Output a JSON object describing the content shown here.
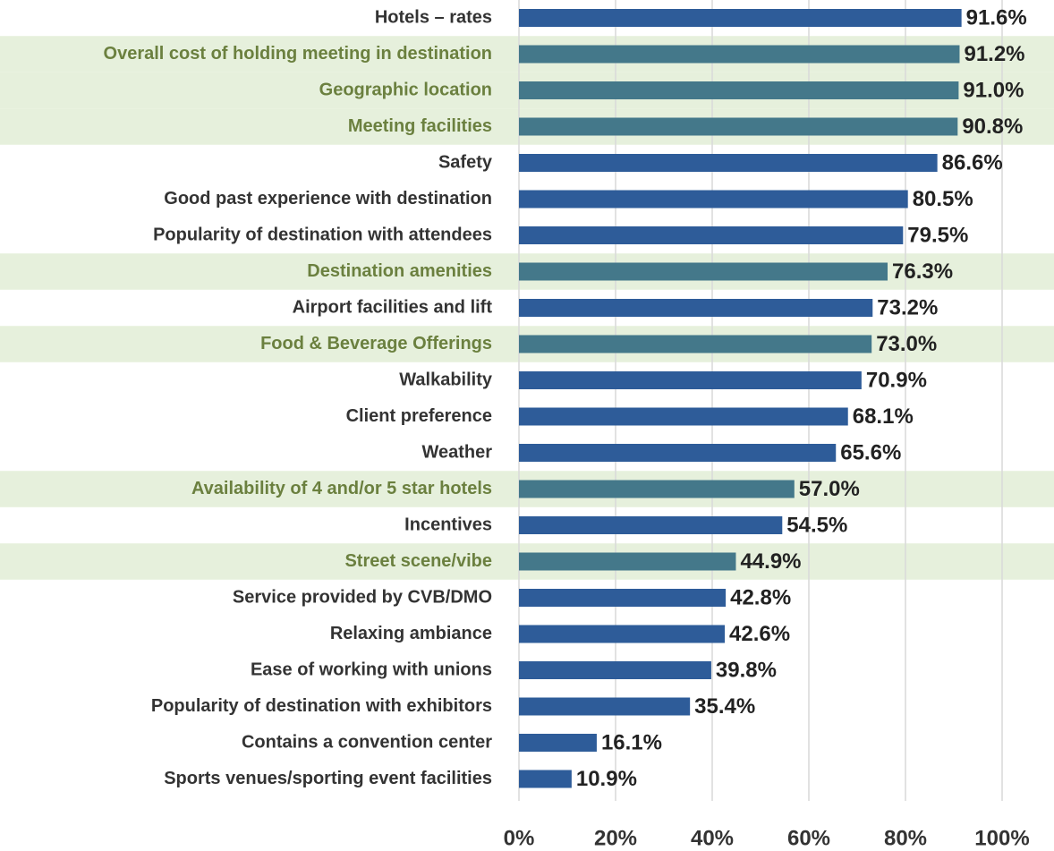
{
  "chart_data": {
    "type": "barh",
    "categories": [
      "Hotels – rates",
      "Overall cost of holding meeting in destination",
      "Geographic location",
      "Meeting facilities",
      "Safety",
      "Good past experience with destination",
      "Popularity of destination with attendees",
      "Destination amenities",
      "Airport facilities and lift",
      "Food & Beverage Offerings",
      "Walkability",
      "Client preference",
      "Weather",
      "Availability of 4 and/or 5 star hotels",
      "Incentives",
      "Street scene/vibe",
      "Service provided by CVB/DMO",
      "Relaxing ambiance",
      "Ease of working with unions",
      "Popularity of destination with exhibitors",
      "Contains a convention center",
      "Sports venues/sporting event facilities"
    ],
    "values": [
      91.6,
      91.2,
      91.0,
      90.8,
      86.6,
      80.5,
      79.5,
      76.3,
      73.2,
      73.0,
      70.9,
      68.1,
      65.6,
      57.0,
      54.5,
      44.9,
      42.8,
      42.6,
      39.8,
      35.4,
      16.1,
      10.9
    ],
    "value_labels": [
      "91.6%",
      "91.2%",
      "91.0%",
      "90.8%",
      "86.6%",
      "80.5%",
      "79.5%",
      "76.3%",
      "73.2%",
      "73.0%",
      "70.9%",
      "68.1%",
      "65.6%",
      "57.0%",
      "54.5%",
      "44.9%",
      "42.8%",
      "42.6%",
      "39.8%",
      "35.4%",
      "16.1%",
      "10.9%"
    ],
    "colors": [
      "#2e5c99",
      "#44788a",
      "#44788a",
      "#44788a",
      "#2e5c99",
      "#2e5c99",
      "#2e5c99",
      "#44788a",
      "#2e5c99",
      "#44788a",
      "#2e5c99",
      "#2e5c99",
      "#2e5c99",
      "#44788a",
      "#2e5c99",
      "#44788a",
      "#2e5c99",
      "#2e5c99",
      "#2e5c99",
      "#2e5c99",
      "#2e5c99",
      "#2e5c99"
    ],
    "highlight_bar_color": "#44788a",
    "highlight_background": "#e6f0dc",
    "xlim": [
      0,
      100
    ],
    "xticks": [
      {
        "value": 0,
        "label": "0%"
      },
      {
        "value": 20,
        "label": "20%"
      },
      {
        "value": 40,
        "label": "40%"
      },
      {
        "value": 60,
        "label": "60%"
      },
      {
        "value": 80,
        "label": "80%"
      },
      {
        "value": 100,
        "label": "100%"
      }
    ],
    "grid": true
  }
}
